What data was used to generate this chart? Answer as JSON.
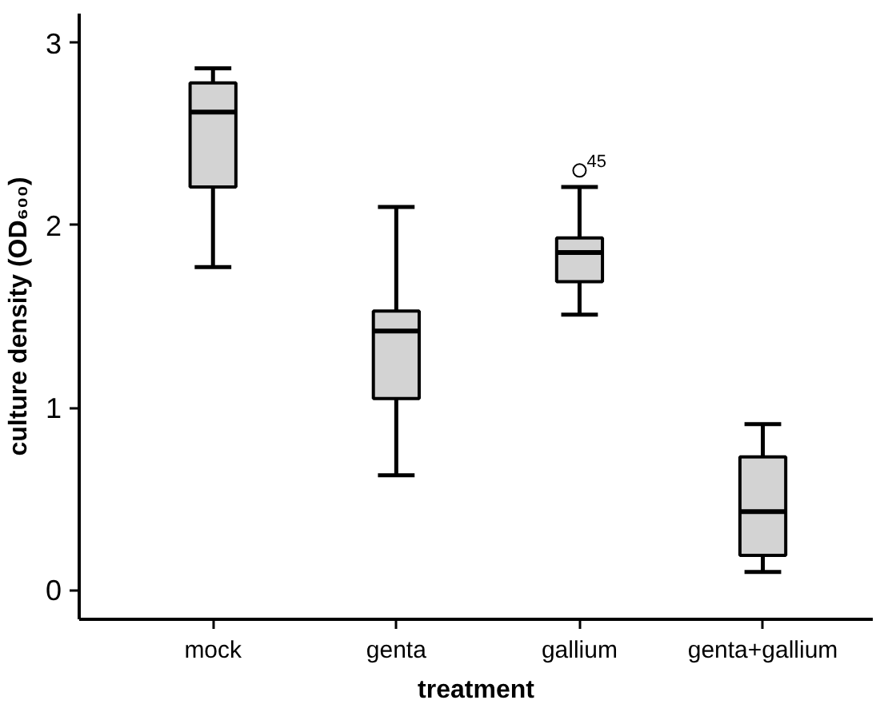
{
  "chart_data": {
    "type": "box",
    "xlabel": "treatment",
    "ylabel": "culture density (OD₆₀₀)",
    "categories": [
      "mock",
      "genta",
      "gallium",
      "genta+gallium"
    ],
    "boxes": [
      {
        "low": 1.77,
        "q1": 2.21,
        "median": 2.62,
        "q3": 2.78,
        "high": 2.86
      },
      {
        "low": 0.63,
        "q1": 1.05,
        "median": 1.42,
        "q3": 1.53,
        "high": 2.1
      },
      {
        "low": 1.51,
        "q1": 1.69,
        "median": 1.85,
        "q3": 1.93,
        "high": 2.21,
        "outliers": [
          2.3
        ]
      },
      {
        "low": 0.1,
        "q1": 0.19,
        "median": 0.43,
        "q3": 0.73,
        "high": 0.91
      }
    ],
    "color": "#d3d3d3",
    "ylim": [
      -0.16,
      3.16
    ],
    "yticks": [
      0,
      1,
      2,
      3
    ],
    "grid": false,
    "annotations": [
      "45"
    ]
  }
}
